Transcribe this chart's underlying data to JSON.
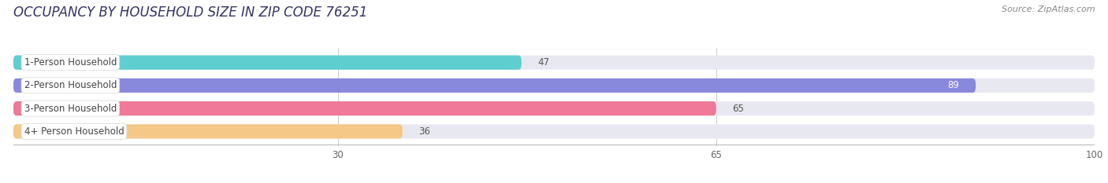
{
  "title": "OCCUPANCY BY HOUSEHOLD SIZE IN ZIP CODE 76251",
  "source": "Source: ZipAtlas.com",
  "categories": [
    "1-Person Household",
    "2-Person Household",
    "3-Person Household",
    "4+ Person Household"
  ],
  "values": [
    47,
    89,
    65,
    36
  ],
  "bar_colors": [
    "#5ecece",
    "#8888dd",
    "#f07898",
    "#f5c888"
  ],
  "bar_bg_color": "#e8e8f0",
  "xlim": [
    0,
    100
  ],
  "xticks": [
    30,
    65,
    100
  ],
  "label_bg_color": "#ffffff",
  "label_text_color": "#444444",
  "fig_bg_color": "#ffffff",
  "title_fontsize": 12,
  "source_fontsize": 8,
  "bar_height": 0.62,
  "value_inside_threshold": 85
}
